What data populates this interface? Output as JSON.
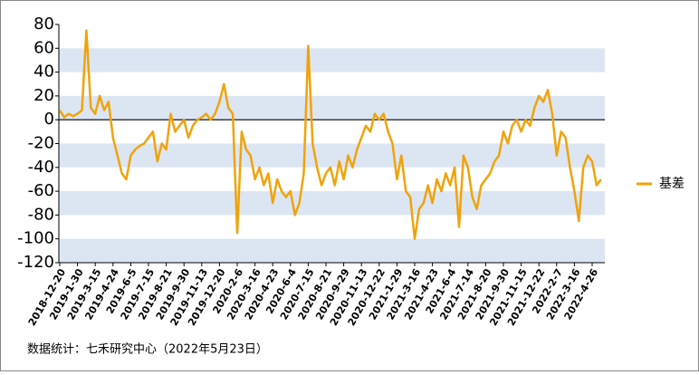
{
  "chart_data": {
    "type": "line",
    "categories": [
      "2018-12-20",
      null,
      null,
      null,
      "2019-1-30",
      null,
      null,
      null,
      "2019-3-15",
      null,
      null,
      null,
      "2019-4-24",
      null,
      null,
      null,
      "2019-6-5",
      null,
      null,
      null,
      "2019-7-15",
      null,
      null,
      null,
      "2019-8-21",
      null,
      null,
      null,
      "2019-9-30",
      null,
      null,
      null,
      "2019-11-13",
      null,
      null,
      null,
      "2019-12-20",
      null,
      null,
      null,
      "2020-2-6",
      null,
      null,
      null,
      "2020-3-16",
      null,
      null,
      null,
      "2020-4-23",
      null,
      null,
      null,
      "2020-6-4",
      null,
      null,
      null,
      "2020-7-15",
      null,
      null,
      null,
      "2020-8-21",
      null,
      null,
      null,
      "2020-9-29",
      null,
      null,
      null,
      "2020-11-13",
      null,
      null,
      null,
      "2020-12-22",
      null,
      null,
      null,
      "2021-1-29",
      null,
      null,
      null,
      "2021-3-16",
      null,
      null,
      null,
      "2021-4-23",
      null,
      null,
      null,
      "2021-6-4",
      null,
      null,
      null,
      "2021-7-14",
      null,
      null,
      null,
      "2021-8-20",
      null,
      null,
      null,
      "2021-9-30",
      null,
      null,
      null,
      "2021-11-15",
      null,
      null,
      null,
      "2021-12-22",
      null,
      null,
      null,
      "2022-2-7",
      null,
      null,
      null,
      "2022-3-16",
      null,
      null,
      null,
      "2022-4-26",
      null,
      null
    ],
    "series": [
      {
        "name": "基差",
        "color": "#f0a30a",
        "values": [
          8,
          2,
          5,
          3,
          5,
          8,
          75,
          10,
          5,
          20,
          8,
          15,
          -15,
          -30,
          -45,
          -50,
          -30,
          -25,
          -22,
          -20,
          -15,
          -10,
          -35,
          -20,
          -25,
          5,
          -10,
          -5,
          0,
          -15,
          -5,
          0,
          2,
          5,
          0,
          5,
          15,
          30,
          10,
          5,
          -95,
          -10,
          -25,
          -30,
          -50,
          -40,
          -55,
          -45,
          -70,
          -50,
          -60,
          -65,
          -60,
          -80,
          -70,
          -45,
          62,
          -20,
          -40,
          -55,
          -45,
          -40,
          -55,
          -35,
          -50,
          -30,
          -40,
          -25,
          -15,
          -5,
          -10,
          5,
          0,
          5,
          -10,
          -20,
          -50,
          -30,
          -60,
          -65,
          -100,
          -75,
          -70,
          -55,
          -70,
          -50,
          -60,
          -45,
          -55,
          -40,
          -90,
          -30,
          -40,
          -65,
          -75,
          -55,
          -50,
          -45,
          -35,
          -30,
          -10,
          -20,
          -5,
          0,
          -10,
          0,
          -5,
          10,
          20,
          15,
          25,
          5,
          -30,
          -10,
          -15,
          -40,
          -60,
          -85,
          -40,
          -30,
          -35,
          -55,
          -50
        ]
      }
    ],
    "ylim": [
      -120,
      80
    ],
    "yticks": [
      -120,
      -100,
      -80,
      -60,
      -40,
      -20,
      0,
      20,
      40,
      60,
      80
    ],
    "band_color": "#dce6f2",
    "zero_line": true,
    "legend": "right",
    "note": "数据统计：七禾研究中心（2022年5月23日）"
  }
}
